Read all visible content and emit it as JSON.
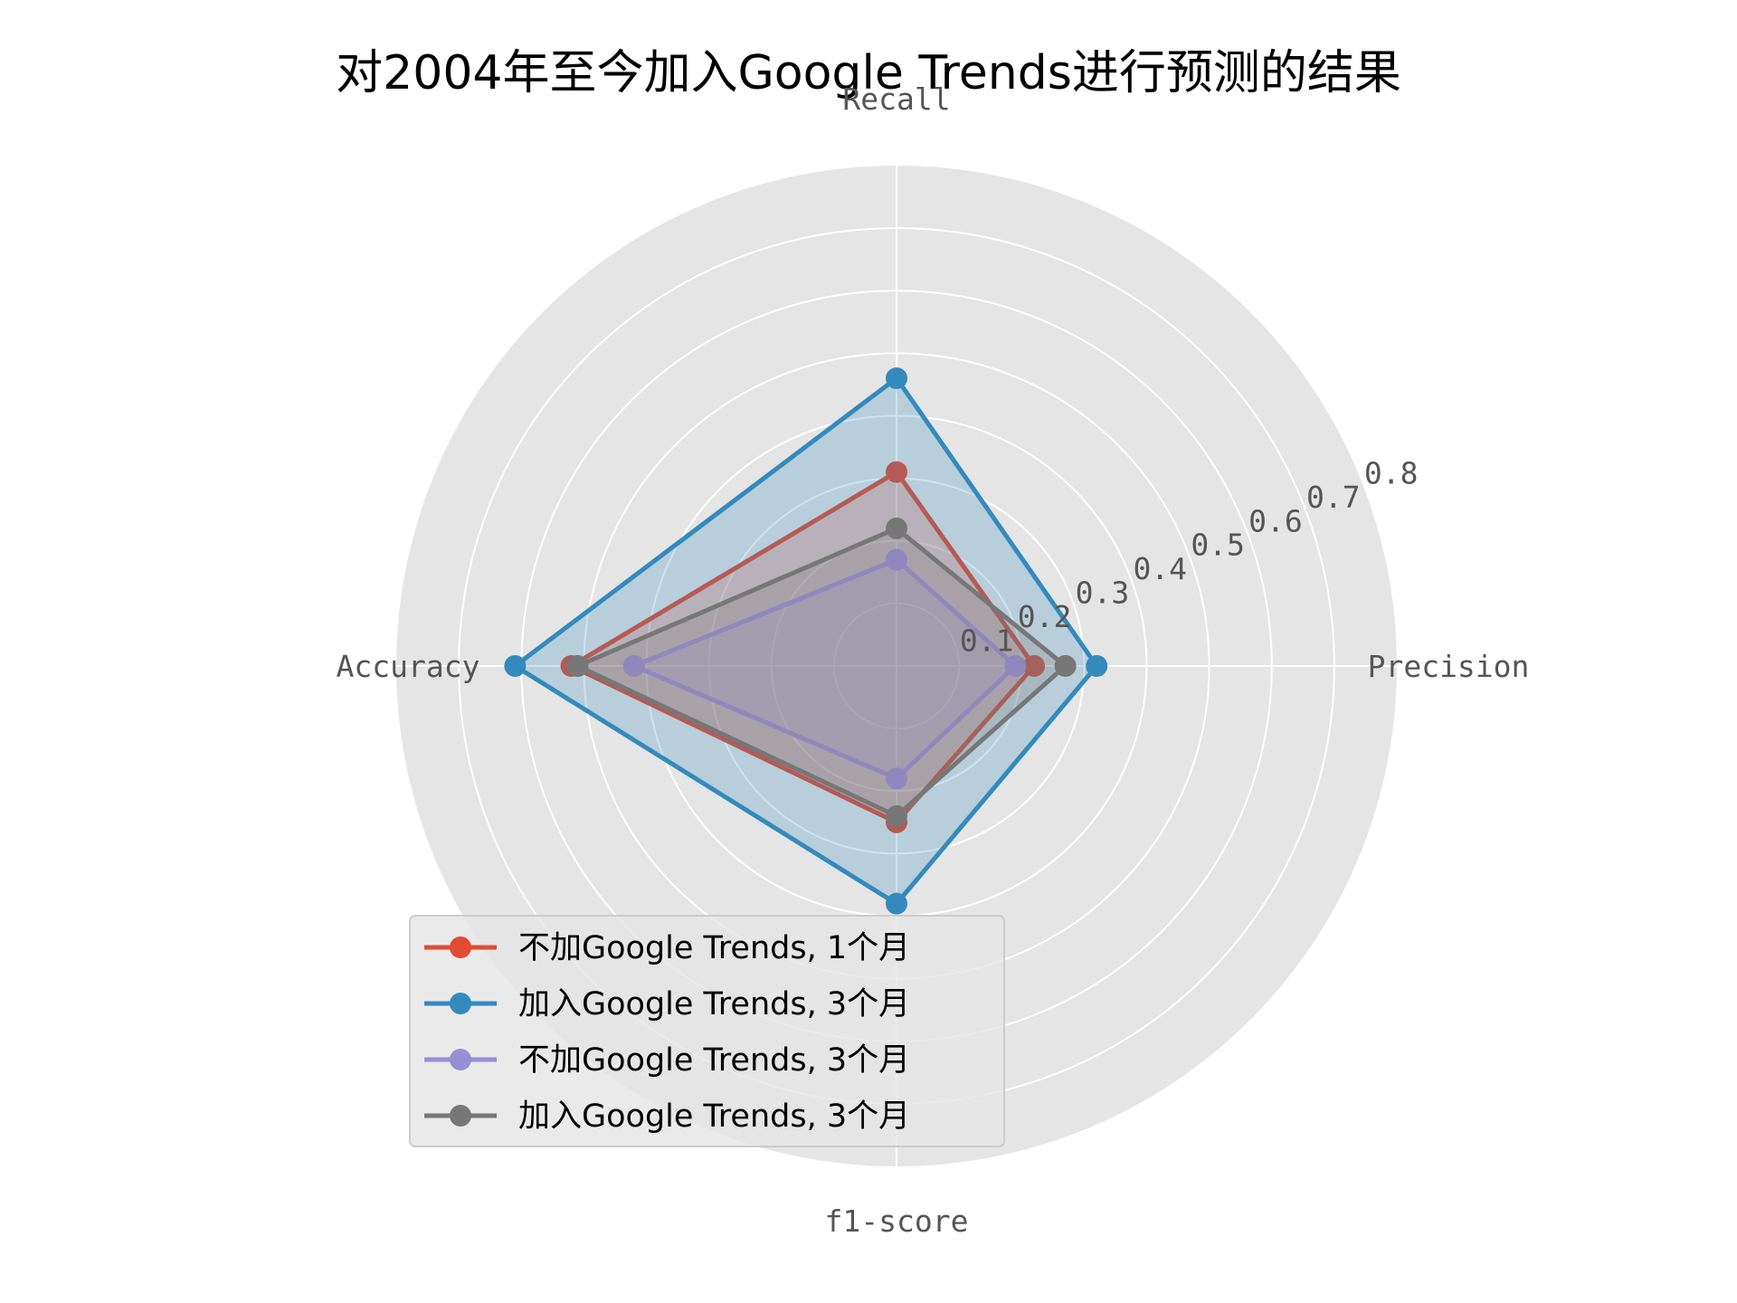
{
  "chart_data": {
    "type": "radar",
    "title": "对2004年至今加入Google Trends进行预测的结果",
    "axes": [
      "Precision",
      "Recall",
      "Accuracy",
      "f1-score"
    ],
    "rlim": [
      0,
      0.8
    ],
    "rticks": [
      0.1,
      0.2,
      0.3,
      0.4,
      0.5,
      0.6,
      0.7,
      0.8
    ],
    "rtick_labels": [
      "0.1",
      "0.2",
      "0.3",
      "0.4",
      "0.5",
      "0.6",
      "0.7",
      "0.8"
    ],
    "grid": true,
    "legend_position": "lower-center",
    "series": [
      {
        "name": "不加Google Trends, 1个月",
        "color": "#E24A33",
        "values": [
          0.22,
          0.31,
          0.52,
          0.25
        ]
      },
      {
        "name": "加入Google Trends, 3个月",
        "color": "#348ABD",
        "values": [
          0.32,
          0.46,
          0.61,
          0.38
        ]
      },
      {
        "name": "不加Google Trends, 3个月",
        "color": "#988ED5",
        "values": [
          0.19,
          0.17,
          0.42,
          0.18
        ]
      },
      {
        "name": "加入Google Trends, 3个月",
        "color": "#777777",
        "values": [
          0.27,
          0.22,
          0.51,
          0.24
        ]
      }
    ]
  }
}
